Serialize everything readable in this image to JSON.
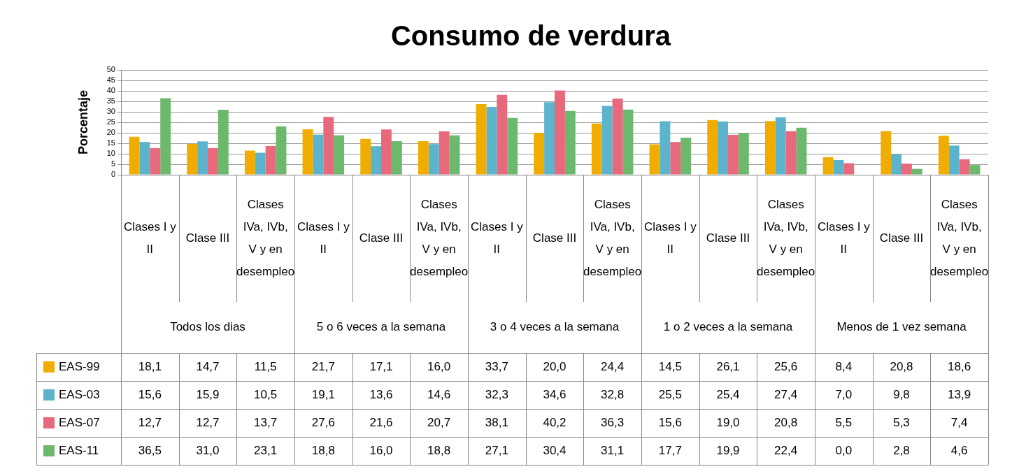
{
  "chart_data": {
    "type": "bar",
    "title": "Consumo de verdura",
    "ylabel": "Porcentaje",
    "categories": [
      "Clases I y II",
      "Clase III",
      "Clases IVa, IVb, V y en desempleo",
      "Clases I y II",
      "Clase III",
      "Clases IVa, IVb, V y en desempleo",
      "Clases I y II",
      "Clase III",
      "Clases IVa, IVb, V y en desempleo",
      "Clases I y II",
      "Clase III",
      "Clases IVa, IVb, V y en desempleo",
      "Clases I y II",
      "Clase III",
      "Clases IVa, IVb, V y en desempleo"
    ],
    "annotations": [
      "Todos los dias",
      "5 o 6 veces a la semana",
      "3 o 4 veces a la semana",
      "1 o 2 veces a la semana",
      "Menos de 1 vez semana"
    ],
    "series": [
      {
        "name": "EAS-99",
        "color": "#f0ad00",
        "values": [
          18.1,
          14.7,
          11.5,
          21.7,
          17.1,
          16.0,
          33.7,
          20.0,
          24.4,
          14.5,
          26.1,
          25.6,
          8.4,
          20.8,
          18.6
        ],
        "value_labels": [
          "18,1",
          "14,7",
          "11,5",
          "21,7",
          "17,1",
          "16,0",
          "33,7",
          "20,0",
          "24,4",
          "14,5",
          "26,1",
          "25,6",
          "8,4",
          "20,8",
          "18,6"
        ]
      },
      {
        "name": "EAS-03",
        "color": "#5bb4cc",
        "values": [
          15.6,
          15.9,
          10.5,
          19.1,
          13.6,
          14.6,
          32.3,
          34.6,
          32.8,
          25.5,
          25.4,
          27.4,
          7.0,
          9.8,
          13.9
        ],
        "value_labels": [
          "15,6",
          "15,9",
          "10,5",
          "19,1",
          "13,6",
          "14,6",
          "32,3",
          "34,6",
          "32,8",
          "25,5",
          "25,4",
          "27,4",
          "7,0",
          "9,8",
          "13,9"
        ]
      },
      {
        "name": "EAS-07",
        "color": "#e8687c",
        "values": [
          12.7,
          12.7,
          13.7,
          27.6,
          21.6,
          20.7,
          38.1,
          40.2,
          36.3,
          15.6,
          19.0,
          20.8,
          5.5,
          5.3,
          7.4
        ],
        "value_labels": [
          "12,7",
          "12,7",
          "13,7",
          "27,6",
          "21,6",
          "20,7",
          "38,1",
          "40,2",
          "36,3",
          "15,6",
          "19,0",
          "20,8",
          "5,5",
          "5,3",
          "7,4"
        ]
      },
      {
        "name": "EAS-11",
        "color": "#6cb86c",
        "values": [
          36.5,
          31.0,
          23.1,
          18.8,
          16.0,
          18.8,
          27.1,
          30.4,
          31.1,
          17.7,
          19.9,
          22.4,
          0.0,
          2.8,
          4.6
        ],
        "value_labels": [
          "36,5",
          "31,0",
          "23,1",
          "18,8",
          "16,0",
          "18,8",
          "27,1",
          "30,4",
          "31,1",
          "17,7",
          "19,9",
          "22,4",
          "0,0",
          "2,8",
          "4,6"
        ]
      }
    ],
    "ylim": [
      0,
      50
    ],
    "yticks": [
      0,
      5,
      10,
      15,
      20,
      25,
      30,
      35,
      40,
      45,
      50
    ],
    "grid": "y",
    "legend": "bottom"
  }
}
